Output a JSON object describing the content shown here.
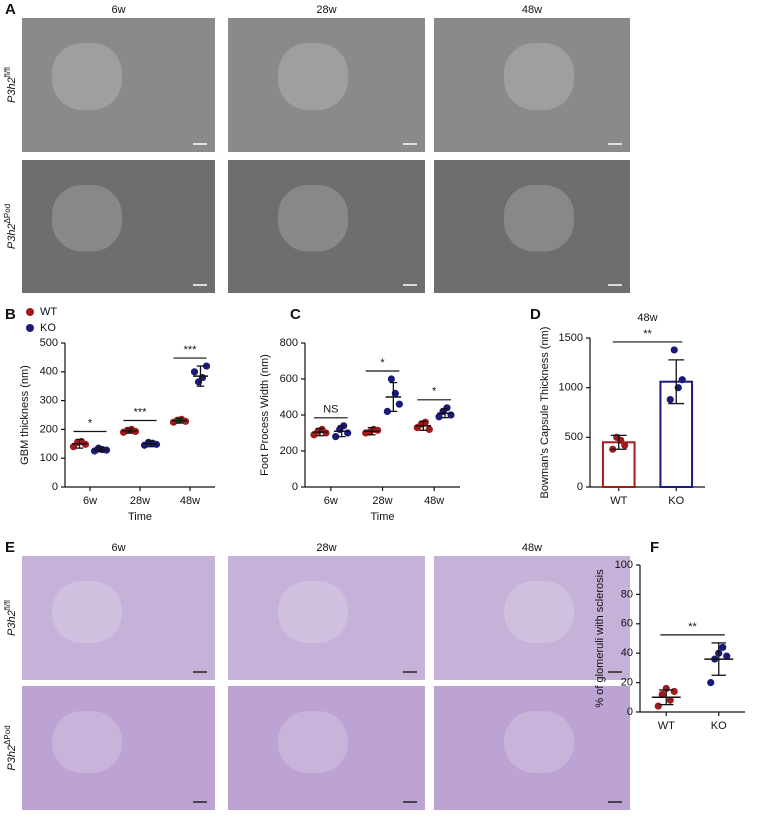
{
  "image_panels": {
    "A": {
      "label": "A",
      "columns": [
        "6w",
        "28w",
        "48w"
      ],
      "rows": [
        {
          "gene": "P3h2",
          "superscript": "fl/fl"
        },
        {
          "gene": "P3h2",
          "superscript": "ΔPod"
        }
      ]
    },
    "E": {
      "label": "E",
      "columns": [
        "6w",
        "28w",
        "48w"
      ],
      "rows": [
        {
          "gene": "P3h2",
          "superscript": "fl/fl"
        },
        {
          "gene": "P3h2",
          "superscript": "ΔPod"
        }
      ]
    }
  },
  "chart_data": [
    {
      "type": "dot",
      "panel": "B",
      "ylabel": "GBM thickness (nm)",
      "xlabel": "Time",
      "categories": [
        "6w",
        "28w",
        "48w"
      ],
      "ylim": [
        0,
        500
      ],
      "yticks": [
        0,
        100,
        200,
        300,
        400,
        500
      ],
      "series": [
        {
          "name": "WT",
          "color": "#a31a1a",
          "values": [
            150,
            195,
            230
          ],
          "errors": [
            15,
            8,
            8
          ],
          "points": [
            [
              140,
              155,
              158,
              148
            ],
            [
              190,
              197,
              200,
              193
            ],
            [
              225,
              232,
              235,
              228
            ]
          ]
        },
        {
          "name": "KO",
          "color": "#1a1a7a",
          "values": [
            130,
            150,
            385
          ],
          "errors": [
            8,
            10,
            35
          ],
          "points": [
            [
              125,
              135,
              130,
              128
            ],
            [
              145,
              155,
              152,
              148
            ],
            [
              400,
              365,
              380,
              420
            ]
          ]
        }
      ],
      "significance": [
        "*",
        "***",
        "***"
      ]
    },
    {
      "type": "dot",
      "panel": "C",
      "ylabel": "Foot Process Width (nm)",
      "xlabel": "Time",
      "categories": [
        "6w",
        "28w",
        "48w"
      ],
      "ylim": [
        0,
        800
      ],
      "yticks": [
        0,
        200,
        400,
        600,
        800
      ],
      "series": [
        {
          "name": "WT",
          "color": "#a31a1a",
          "values": [
            305,
            310,
            340
          ],
          "errors": [
            20,
            20,
            25
          ],
          "points": [
            [
              290,
              310,
              320,
              300
            ],
            [
              300,
              305,
              320,
              315
            ],
            [
              330,
              350,
              360,
              320
            ]
          ]
        },
        {
          "name": "KO",
          "color": "#1a1a7a",
          "values": [
            310,
            500,
            410
          ],
          "errors": [
            30,
            80,
            25
          ],
          "points": [
            [
              280,
              320,
              340,
              300
            ],
            [
              420,
              600,
              520,
              460
            ],
            [
              390,
              420,
              440,
              400
            ]
          ]
        }
      ],
      "significance": [
        "NS",
        "*",
        "*"
      ]
    },
    {
      "type": "bar",
      "panel": "D",
      "title": "48w",
      "ylabel": "Bowman's Capsule Thickness (nm)",
      "categories": [
        "WT",
        "KO"
      ],
      "colors": [
        "#a31a1a",
        "#1a1a7a"
      ],
      "ylim": [
        0,
        1500
      ],
      "yticks": [
        0,
        500,
        1000,
        1500
      ],
      "values": [
        450,
        1060
      ],
      "errors": [
        70,
        220
      ],
      "points": [
        [
          380,
          500,
          470,
          420
        ],
        [
          880,
          1380,
          1000,
          1080
        ]
      ],
      "significance": "**"
    },
    {
      "type": "dot",
      "panel": "F",
      "ylabel": "% of glomeruli with sclerosis",
      "categories": [
        "WT",
        "KO"
      ],
      "colors": [
        "#a31a1a",
        "#1a1a7a"
      ],
      "ylim": [
        0,
        100
      ],
      "yticks": [
        0,
        20,
        40,
        60,
        80,
        100
      ],
      "values": [
        10,
        36
      ],
      "errors": [
        5,
        11
      ],
      "points": [
        [
          4,
          12,
          16,
          8,
          14
        ],
        [
          20,
          36,
          40,
          44,
          38
        ]
      ],
      "significance": "**"
    }
  ]
}
